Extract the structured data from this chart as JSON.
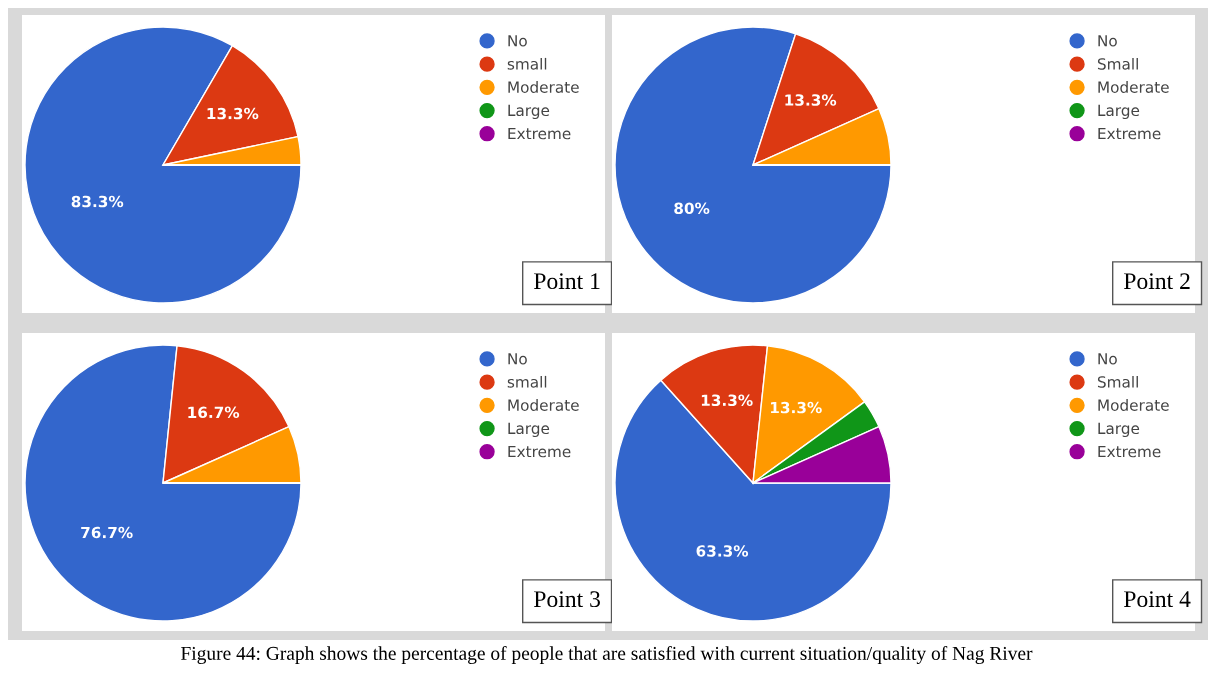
{
  "chart_data": [
    {
      "type": "pie",
      "categories": [
        "No",
        "small",
        "Moderate",
        "Large",
        "Extreme"
      ],
      "values": [
        83.3,
        13.3,
        3.3,
        0,
        0
      ],
      "colors": [
        "#3366cc",
        "#dc3912",
        "#ff9900",
        "#109618",
        "#990099"
      ],
      "value_labels": [
        "83.3%",
        "13.3%",
        null,
        null,
        null
      ],
      "legend": "top right",
      "annotations": [
        "Point 1"
      ]
    },
    {
      "type": "pie",
      "categories": [
        "No",
        "Small",
        "Moderate",
        "Large",
        "Extreme"
      ],
      "values": [
        80,
        13.3,
        6.7,
        0,
        0
      ],
      "colors": [
        "#3366cc",
        "#dc3912",
        "#ff9900",
        "#109618",
        "#990099"
      ],
      "value_labels": [
        "80%",
        "13.3%",
        null,
        null,
        null
      ],
      "legend": "top right",
      "annotations": [
        "Point 2"
      ]
    },
    {
      "type": "pie",
      "categories": [
        "No",
        "small",
        "Moderate",
        "Large",
        "Extreme"
      ],
      "values": [
        76.7,
        16.7,
        6.7,
        0,
        0
      ],
      "colors": [
        "#3366cc",
        "#dc3912",
        "#ff9900",
        "#109618",
        "#990099"
      ],
      "value_labels": [
        "76.7%",
        "16.7%",
        null,
        null,
        null
      ],
      "legend": "top right",
      "annotations": [
        "Point 3"
      ]
    },
    {
      "type": "pie",
      "categories": [
        "No",
        "Small",
        "Moderate",
        "Large",
        "Extreme"
      ],
      "values": [
        63.3,
        13.3,
        13.3,
        3.3,
        6.7
      ],
      "colors": [
        "#3366cc",
        "#dc3912",
        "#ff9900",
        "#109618",
        "#990099"
      ],
      "value_labels": [
        "63.3%",
        "13.3%",
        "13.3%",
        null,
        null
      ],
      "legend": "top right",
      "annotations": [
        "Point 4",
        "Figure 44: Graph shows the percentage of people that are satisfied with current situation/quality of Nag River"
      ]
    }
  ]
}
